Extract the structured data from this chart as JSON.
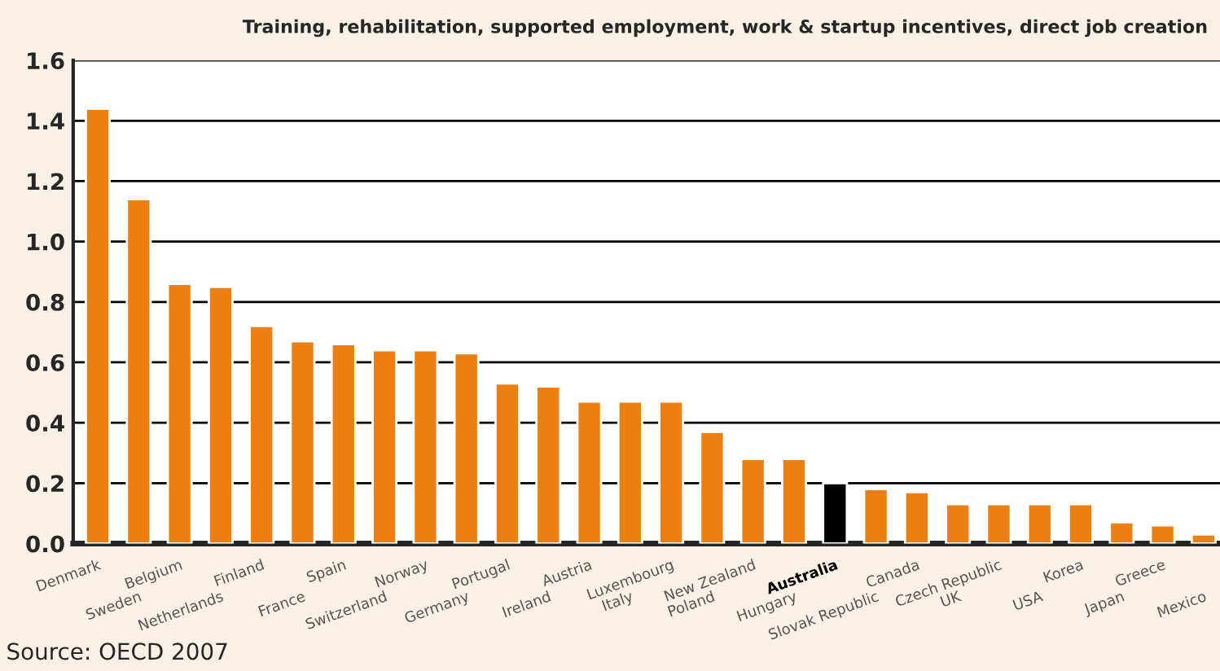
{
  "chart_data": {
    "type": "bar",
    "title": "Training, rehabilitation, supported employment, work & startup incentives, direct job creation",
    "categories": [
      "Denmark",
      "Sweden",
      "Belgium",
      "Netherlands",
      "Finland",
      "France",
      "Spain",
      "Switzerland",
      "Norway",
      "Germany",
      "Portugal",
      "Ireland",
      "Austria",
      "Italy",
      "Luxembourg",
      "Poland",
      "New Zealand",
      "Hungary",
      "Australia",
      "Slovak Republic",
      "Canada",
      "UK",
      "Czech Republic",
      "USA",
      "Korea",
      "Japan",
      "Greece",
      "Mexico"
    ],
    "values": [
      1.44,
      1.14,
      0.86,
      0.85,
      0.72,
      0.67,
      0.66,
      0.64,
      0.64,
      0.63,
      0.53,
      0.52,
      0.47,
      0.47,
      0.47,
      0.37,
      0.28,
      0.28,
      0.2,
      0.18,
      0.17,
      0.13,
      0.13,
      0.13,
      0.13,
      0.07,
      0.06,
      0.03
    ],
    "colors": [
      "#ed7f12",
      "#ed7f12",
      "#ed7f12",
      "#ed7f12",
      "#ed7f12",
      "#ed7f12",
      "#ed7f12",
      "#ed7f12",
      "#ed7f12",
      "#ed7f12",
      "#ed7f12",
      "#ed7f12",
      "#ed7f12",
      "#ed7f12",
      "#ed7f12",
      "#ed7f12",
      "#ed7f12",
      "#ed7f12",
      "#000000",
      "#ed7f12",
      "#ed7f12",
      "#ed7f12",
      "#ed7f12",
      "#ed7f12",
      "#ed7f12",
      "#ed7f12",
      "#ed7f12",
      "#ed7f12"
    ],
    "ylim": [
      0,
      1.6
    ],
    "yticks": [
      {
        "value": 0,
        "label": "0.0"
      },
      {
        "value": 0.2,
        "label": "0.2"
      },
      {
        "value": 0.4,
        "label": "0.4"
      },
      {
        "value": 0.6,
        "label": "0.6"
      },
      {
        "value": 0.8,
        "label": "0.8"
      },
      {
        "value": 1.0,
        "label": "1.0"
      },
      {
        "value": 1.2,
        "label": "1.2"
      },
      {
        "value": 1.4,
        "label": "1.4"
      },
      {
        "value": 1.6,
        "label": "1.6"
      }
    ],
    "grid": "y",
    "annotations": [
      "Source: OECD 2007"
    ]
  }
}
